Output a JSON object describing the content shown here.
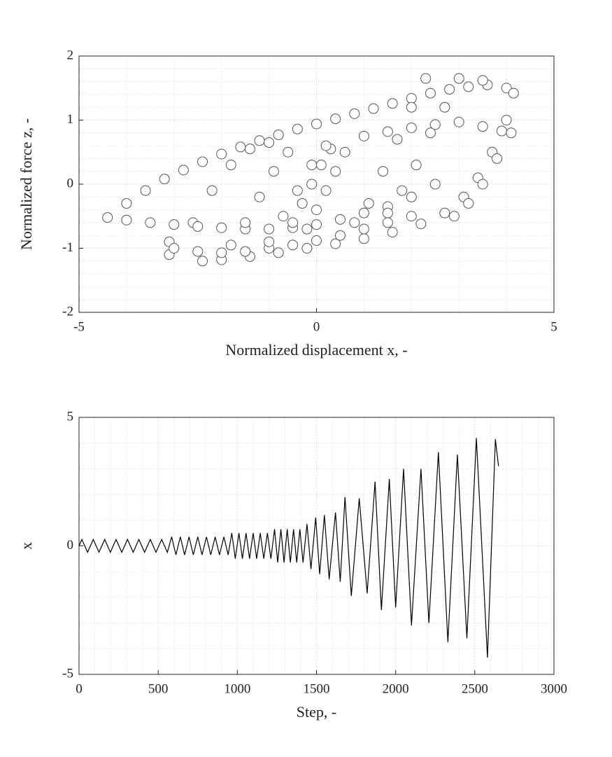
{
  "chart_data": [
    {
      "type": "scatter",
      "xlabel": "Normalized displacement x, -",
      "ylabel": "Normalized force z, -",
      "xlim": [
        -5,
        5
      ],
      "xticks": [
        -5,
        0,
        5
      ],
      "ylim": [
        -2,
        2
      ],
      "yticks": [
        -2,
        -1,
        0,
        1,
        2
      ],
      "grid": true,
      "minor_grid": true,
      "color": "#ffffff",
      "edge_color": "#555555",
      "x": [
        -4.4,
        -4.0,
        -3.6,
        -3.2,
        -2.8,
        -2.4,
        -2.0,
        -1.6,
        -1.2,
        -0.8,
        -0.4,
        0,
        0.4,
        0.8,
        1.2,
        1.6,
        2.0,
        2.4,
        2.8,
        3.2,
        3.6,
        4.0,
        4.15,
        4.0,
        3.7,
        3.4,
        3.1,
        2.7,
        2.2,
        1.6,
        1.0,
        0.4,
        -0.2,
        -0.8,
        -1.4,
        -2.0,
        -2.4,
        -3.1,
        -3.1,
        -2.6,
        -2.2,
        -1.8,
        -1.4,
        -1.0,
        -4.0,
        -3.5,
        -3.0,
        -2.5,
        -2.0,
        -1.5,
        -1.0,
        -0.5,
        0,
        0.5,
        1.0,
        1.5,
        2.0,
        2.5,
        1.0,
        1.5,
        2.0,
        2.5,
        3.0,
        3.5,
        3.9,
        4.1,
        3.8,
        3.5,
        3.2,
        2.9,
        -0.5,
        -0.3,
        -0.1,
        0.1,
        0.3,
        -0.2,
        0,
        0.2,
        0.4,
        0.6,
        2.7,
        2.4,
        2.1,
        1.8,
        1.5,
        2.3,
        2.0,
        1.7,
        1.4,
        1.1,
        0.8,
        -3.0,
        -2.5,
        -2.0,
        -1.5,
        -1.0,
        -0.5,
        0,
        0.5,
        1.0,
        1.5,
        2.0,
        3.0,
        3.5,
        -1.0,
        -0.7,
        -0.4,
        -0.1,
        0.2,
        -1.8,
        -1.5,
        -1.2,
        -0.9,
        -0.6
      ],
      "values": [
        -0.52,
        -0.3,
        -0.1,
        0.08,
        0.22,
        0.35,
        0.47,
        0.58,
        0.68,
        0.77,
        0.86,
        0.94,
        1.02,
        1.1,
        1.18,
        1.26,
        1.34,
        1.42,
        1.48,
        1.52,
        1.55,
        1.5,
        1.42,
        1.0,
        0.5,
        0.1,
        -0.2,
        -0.45,
        -0.62,
        -0.75,
        -0.85,
        -0.93,
        -1.0,
        -1.07,
        -1.13,
        -1.18,
        -1.2,
        -1.1,
        -0.9,
        -0.6,
        -0.1,
        0.3,
        0.55,
        0.65,
        -0.56,
        -0.6,
        -0.63,
        -0.66,
        -0.68,
        -0.7,
        -0.7,
        -0.68,
        -0.63,
        -0.55,
        -0.45,
        -0.35,
        -0.2,
        0,
        0.75,
        0.82,
        0.88,
        0.93,
        0.97,
        0.9,
        0.83,
        0.8,
        0.4,
        0.0,
        -0.3,
        -0.5,
        -0.6,
        -0.3,
        0.0,
        0.3,
        0.55,
        -0.7,
        -0.4,
        -0.1,
        0.2,
        0.5,
        1.2,
        0.8,
        0.3,
        -0.1,
        -0.45,
        1.65,
        1.2,
        0.7,
        0.2,
        -0.3,
        -0.6,
        -1.0,
        -1.05,
        -1.07,
        -1.05,
        -1.0,
        -0.95,
        -0.88,
        -0.8,
        -0.7,
        -0.6,
        -0.5,
        1.65,
        1.62,
        -0.9,
        -0.5,
        -0.1,
        0.3,
        0.6,
        -0.95,
        -0.6,
        -0.2,
        0.2,
        0.5
      ]
    },
    {
      "type": "line",
      "xlabel": "Step, -",
      "ylabel": "x",
      "xlim": [
        0,
        3000
      ],
      "xticks": [
        0,
        500,
        1000,
        1500,
        2000,
        2500,
        3000
      ],
      "ylim": [
        -5,
        5
      ],
      "yticks": [
        -5,
        0,
        5
      ],
      "grid": true,
      "minor_grid": true,
      "color": "#000000",
      "x": [
        0,
        18,
        54,
        90,
        126,
        162,
        198,
        234,
        270,
        306,
        342,
        378,
        414,
        450,
        486,
        522,
        558,
        585,
        612,
        640,
        667,
        695,
        722,
        750,
        777,
        805,
        832,
        860,
        887,
        915,
        942,
        965,
        987,
        1010,
        1032,
        1055,
        1077,
        1100,
        1122,
        1145,
        1167,
        1190,
        1212,
        1235,
        1255,
        1275,
        1295,
        1315,
        1335,
        1355,
        1375,
        1395,
        1415,
        1440,
        1465,
        1495,
        1520,
        1550,
        1580,
        1620,
        1650,
        1680,
        1720,
        1770,
        1820,
        1870,
        1910,
        1960,
        2000,
        2050,
        2100,
        2160,
        2210,
        2270,
        2330,
        2390,
        2450,
        2510,
        2580,
        2630,
        2650
      ],
      "values": [
        0,
        0.25,
        -0.25,
        0.25,
        -0.25,
        0.25,
        -0.25,
        0.25,
        -0.25,
        0.25,
        -0.25,
        0.25,
        -0.25,
        0.25,
        -0.25,
        0.25,
        -0.25,
        0.35,
        -0.35,
        0.35,
        -0.35,
        0.35,
        -0.35,
        0.35,
        -0.35,
        0.35,
        -0.35,
        0.35,
        -0.35,
        0.35,
        -0.35,
        0.5,
        -0.5,
        0.5,
        -0.5,
        0.5,
        -0.5,
        0.5,
        -0.5,
        0.5,
        -0.5,
        0.5,
        -0.5,
        0.65,
        -0.65,
        0.65,
        -0.65,
        0.65,
        -0.65,
        0.65,
        -0.65,
        0.65,
        -0.65,
        0.85,
        -0.9,
        1.1,
        -1.1,
        1.2,
        -1.3,
        1.3,
        -1.4,
        1.9,
        -1.95,
        1.85,
        -1.85,
        2.5,
        -2.5,
        2.6,
        -2.4,
        3.0,
        -3.1,
        3.0,
        -3.0,
        3.65,
        -3.75,
        3.55,
        -3.6,
        4.2,
        -4.35,
        4.15,
        3.1
      ]
    }
  ]
}
